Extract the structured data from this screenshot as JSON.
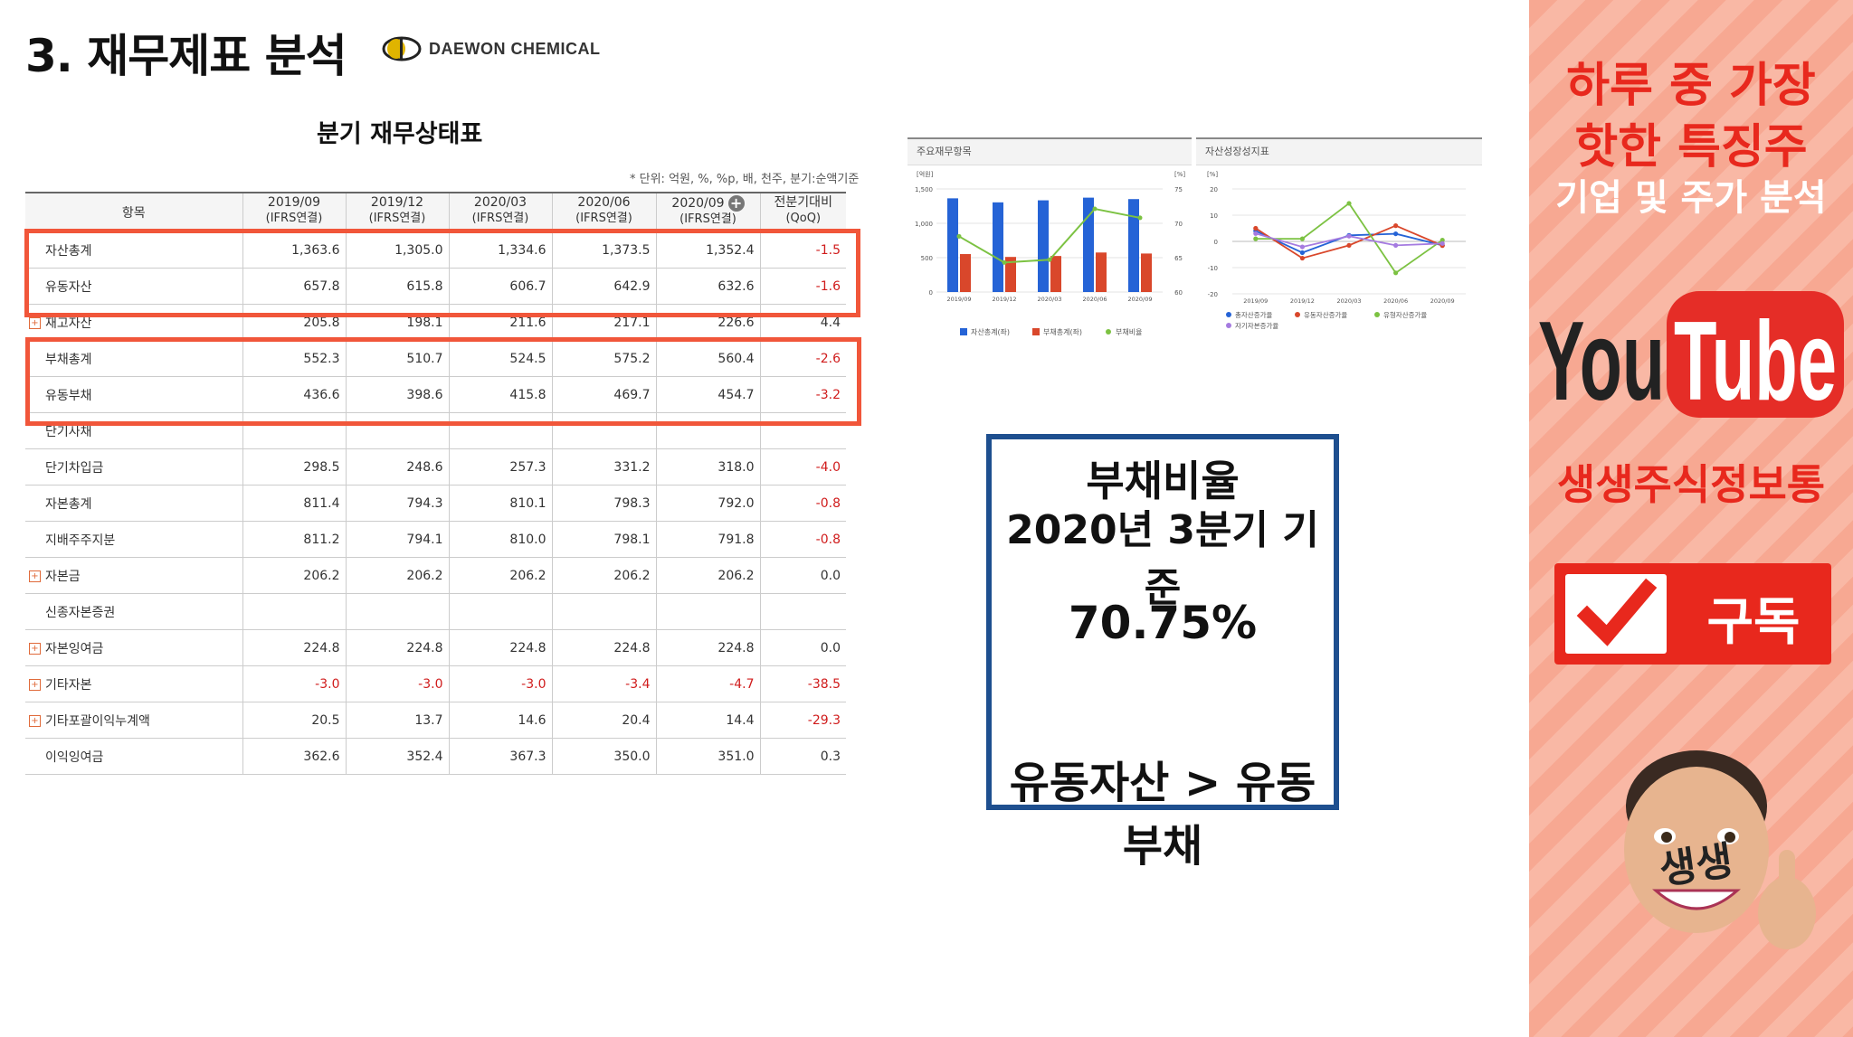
{
  "page": {
    "title": "3. 재무제표 분석",
    "logo_text": "DAEWON CHEMICAL"
  },
  "table": {
    "title": "분기 재무상태표",
    "unit_note": "* 단위: 억원, %, %p, 배, 천주, 분기:순액기준",
    "headers": [
      {
        "top": "항목",
        "sub": ""
      },
      {
        "top": "2019/09",
        "sub": "(IFRS연결)"
      },
      {
        "top": "2019/12",
        "sub": "(IFRS연결)"
      },
      {
        "top": "2020/03",
        "sub": "(IFRS연결)"
      },
      {
        "top": "2020/06",
        "sub": "(IFRS연결)"
      },
      {
        "top": "2020/09",
        "sub": "(IFRS연결)"
      },
      {
        "top": "전분기대비",
        "sub": "(QoQ)"
      }
    ],
    "rows": [
      {
        "label": "자산총계",
        "expand": false,
        "values": [
          "1,363.6",
          "1,305.0",
          "1,334.6",
          "1,373.5",
          "1,352.4",
          "-1.5"
        ]
      },
      {
        "label": "유동자산",
        "expand": false,
        "values": [
          "657.8",
          "615.8",
          "606.7",
          "642.9",
          "632.6",
          "-1.6"
        ]
      },
      {
        "label": "재고자산",
        "expand": true,
        "values": [
          "205.8",
          "198.1",
          "211.6",
          "217.1",
          "226.6",
          "4.4"
        ]
      },
      {
        "label": "부채총계",
        "expand": false,
        "values": [
          "552.3",
          "510.7",
          "524.5",
          "575.2",
          "560.4",
          "-2.6"
        ]
      },
      {
        "label": "유동부채",
        "expand": false,
        "values": [
          "436.6",
          "398.6",
          "415.8",
          "469.7",
          "454.7",
          "-3.2"
        ]
      },
      {
        "label": "단기사채",
        "expand": false,
        "values": [
          "",
          "",
          "",
          "",
          "",
          ""
        ]
      },
      {
        "label": "단기차입금",
        "expand": false,
        "values": [
          "298.5",
          "248.6",
          "257.3",
          "331.2",
          "318.0",
          "-4.0"
        ]
      },
      {
        "label": "자본총계",
        "expand": false,
        "values": [
          "811.4",
          "794.3",
          "810.1",
          "798.3",
          "792.0",
          "-0.8"
        ]
      },
      {
        "label": "지배주주지분",
        "expand": false,
        "values": [
          "811.2",
          "794.1",
          "810.0",
          "798.1",
          "791.8",
          "-0.8"
        ]
      },
      {
        "label": "자본금",
        "expand": true,
        "values": [
          "206.2",
          "206.2",
          "206.2",
          "206.2",
          "206.2",
          "0.0"
        ]
      },
      {
        "label": "신종자본증권",
        "expand": false,
        "values": [
          "",
          "",
          "",
          "",
          "",
          ""
        ]
      },
      {
        "label": "자본잉여금",
        "expand": true,
        "values": [
          "224.8",
          "224.8",
          "224.8",
          "224.8",
          "224.8",
          "0.0"
        ]
      },
      {
        "label": "기타자본",
        "expand": true,
        "values": [
          "-3.0",
          "-3.0",
          "-3.0",
          "-3.4",
          "-4.7",
          "-38.5"
        ]
      },
      {
        "label": "기타포괄이익누계액",
        "expand": true,
        "values": [
          "20.5",
          "13.7",
          "14.6",
          "20.4",
          "14.4",
          "-29.3"
        ]
      },
      {
        "label": "이익잉여금",
        "expand": false,
        "values": [
          "362.6",
          "352.4",
          "367.3",
          "350.0",
          "351.0",
          "0.3"
        ]
      }
    ]
  },
  "chart_data": [
    {
      "type": "bar",
      "title": "주요재무항목",
      "ylabel_left": "[억원]",
      "ylabel_right": "[%]",
      "categories": [
        "2019/09",
        "2019/12",
        "2020/03",
        "2020/06",
        "2020/09"
      ],
      "ylim_left": [
        0,
        1500
      ],
      "yticks_left": [
        "1,500",
        "1,000",
        "500",
        "0"
      ],
      "ylim_right": [
        60,
        75
      ],
      "yticks_right": [
        "75",
        "70",
        "65",
        "60"
      ],
      "series": [
        {
          "name": "자산총계(좌)",
          "kind": "bar",
          "color": "#2563d6",
          "values": [
            1363.6,
            1305.0,
            1334.6,
            1373.5,
            1352.4
          ]
        },
        {
          "name": "부채총계(좌)",
          "kind": "bar",
          "color": "#d9472b",
          "values": [
            552.3,
            510.7,
            524.5,
            575.2,
            560.4
          ]
        },
        {
          "name": "부채비율",
          "kind": "line",
          "axis": "right",
          "color": "#7cc242",
          "values": [
            68.1,
            64.3,
            64.7,
            72.1,
            70.8
          ]
        }
      ]
    },
    {
      "type": "line",
      "title": "자산성장성지표",
      "ylabel": "[%]",
      "categories": [
        "2019/09",
        "2019/12",
        "2020/03",
        "2020/06",
        "2020/09"
      ],
      "ylim": [
        -20,
        20
      ],
      "yticks": [
        "20",
        "10",
        "0",
        "-10",
        "-20"
      ],
      "series": [
        {
          "name": "총자산증가율",
          "color": "#2563d6",
          "values": [
            4.0,
            -4.3,
            2.3,
            2.9,
            -1.5
          ]
        },
        {
          "name": "유동자산증가율",
          "color": "#d9472b",
          "values": [
            5.0,
            -6.4,
            -1.5,
            6.0,
            -1.6
          ]
        },
        {
          "name": "유형자산증가율",
          "color": "#7cc242",
          "values": [
            1.0,
            1.0,
            14.5,
            -12.0,
            0.5
          ]
        },
        {
          "name": "자기자본증가율",
          "color": "#a57be0",
          "values": [
            3.0,
            -2.1,
            2.0,
            -1.5,
            -0.8
          ]
        }
      ]
    }
  ],
  "debt_box": {
    "line1": "부채비율",
    "line2": "2020년 3분기 기준",
    "line3": "70.75%",
    "line4": "유동자산 > 유동부채"
  },
  "sidebar": {
    "line1": "하루 중 가장",
    "line2": "핫한 특징주",
    "line3": "기업 및 주가 분석",
    "youtube_you": "You",
    "youtube_tube": "Tube",
    "channel": "생생주식정보통",
    "subscribe": "구독",
    "avatar_text": "생생",
    "colors": {
      "accent": "#e8281d",
      "box_border": "#1e4f8f",
      "highlight": "#f1563a"
    }
  }
}
